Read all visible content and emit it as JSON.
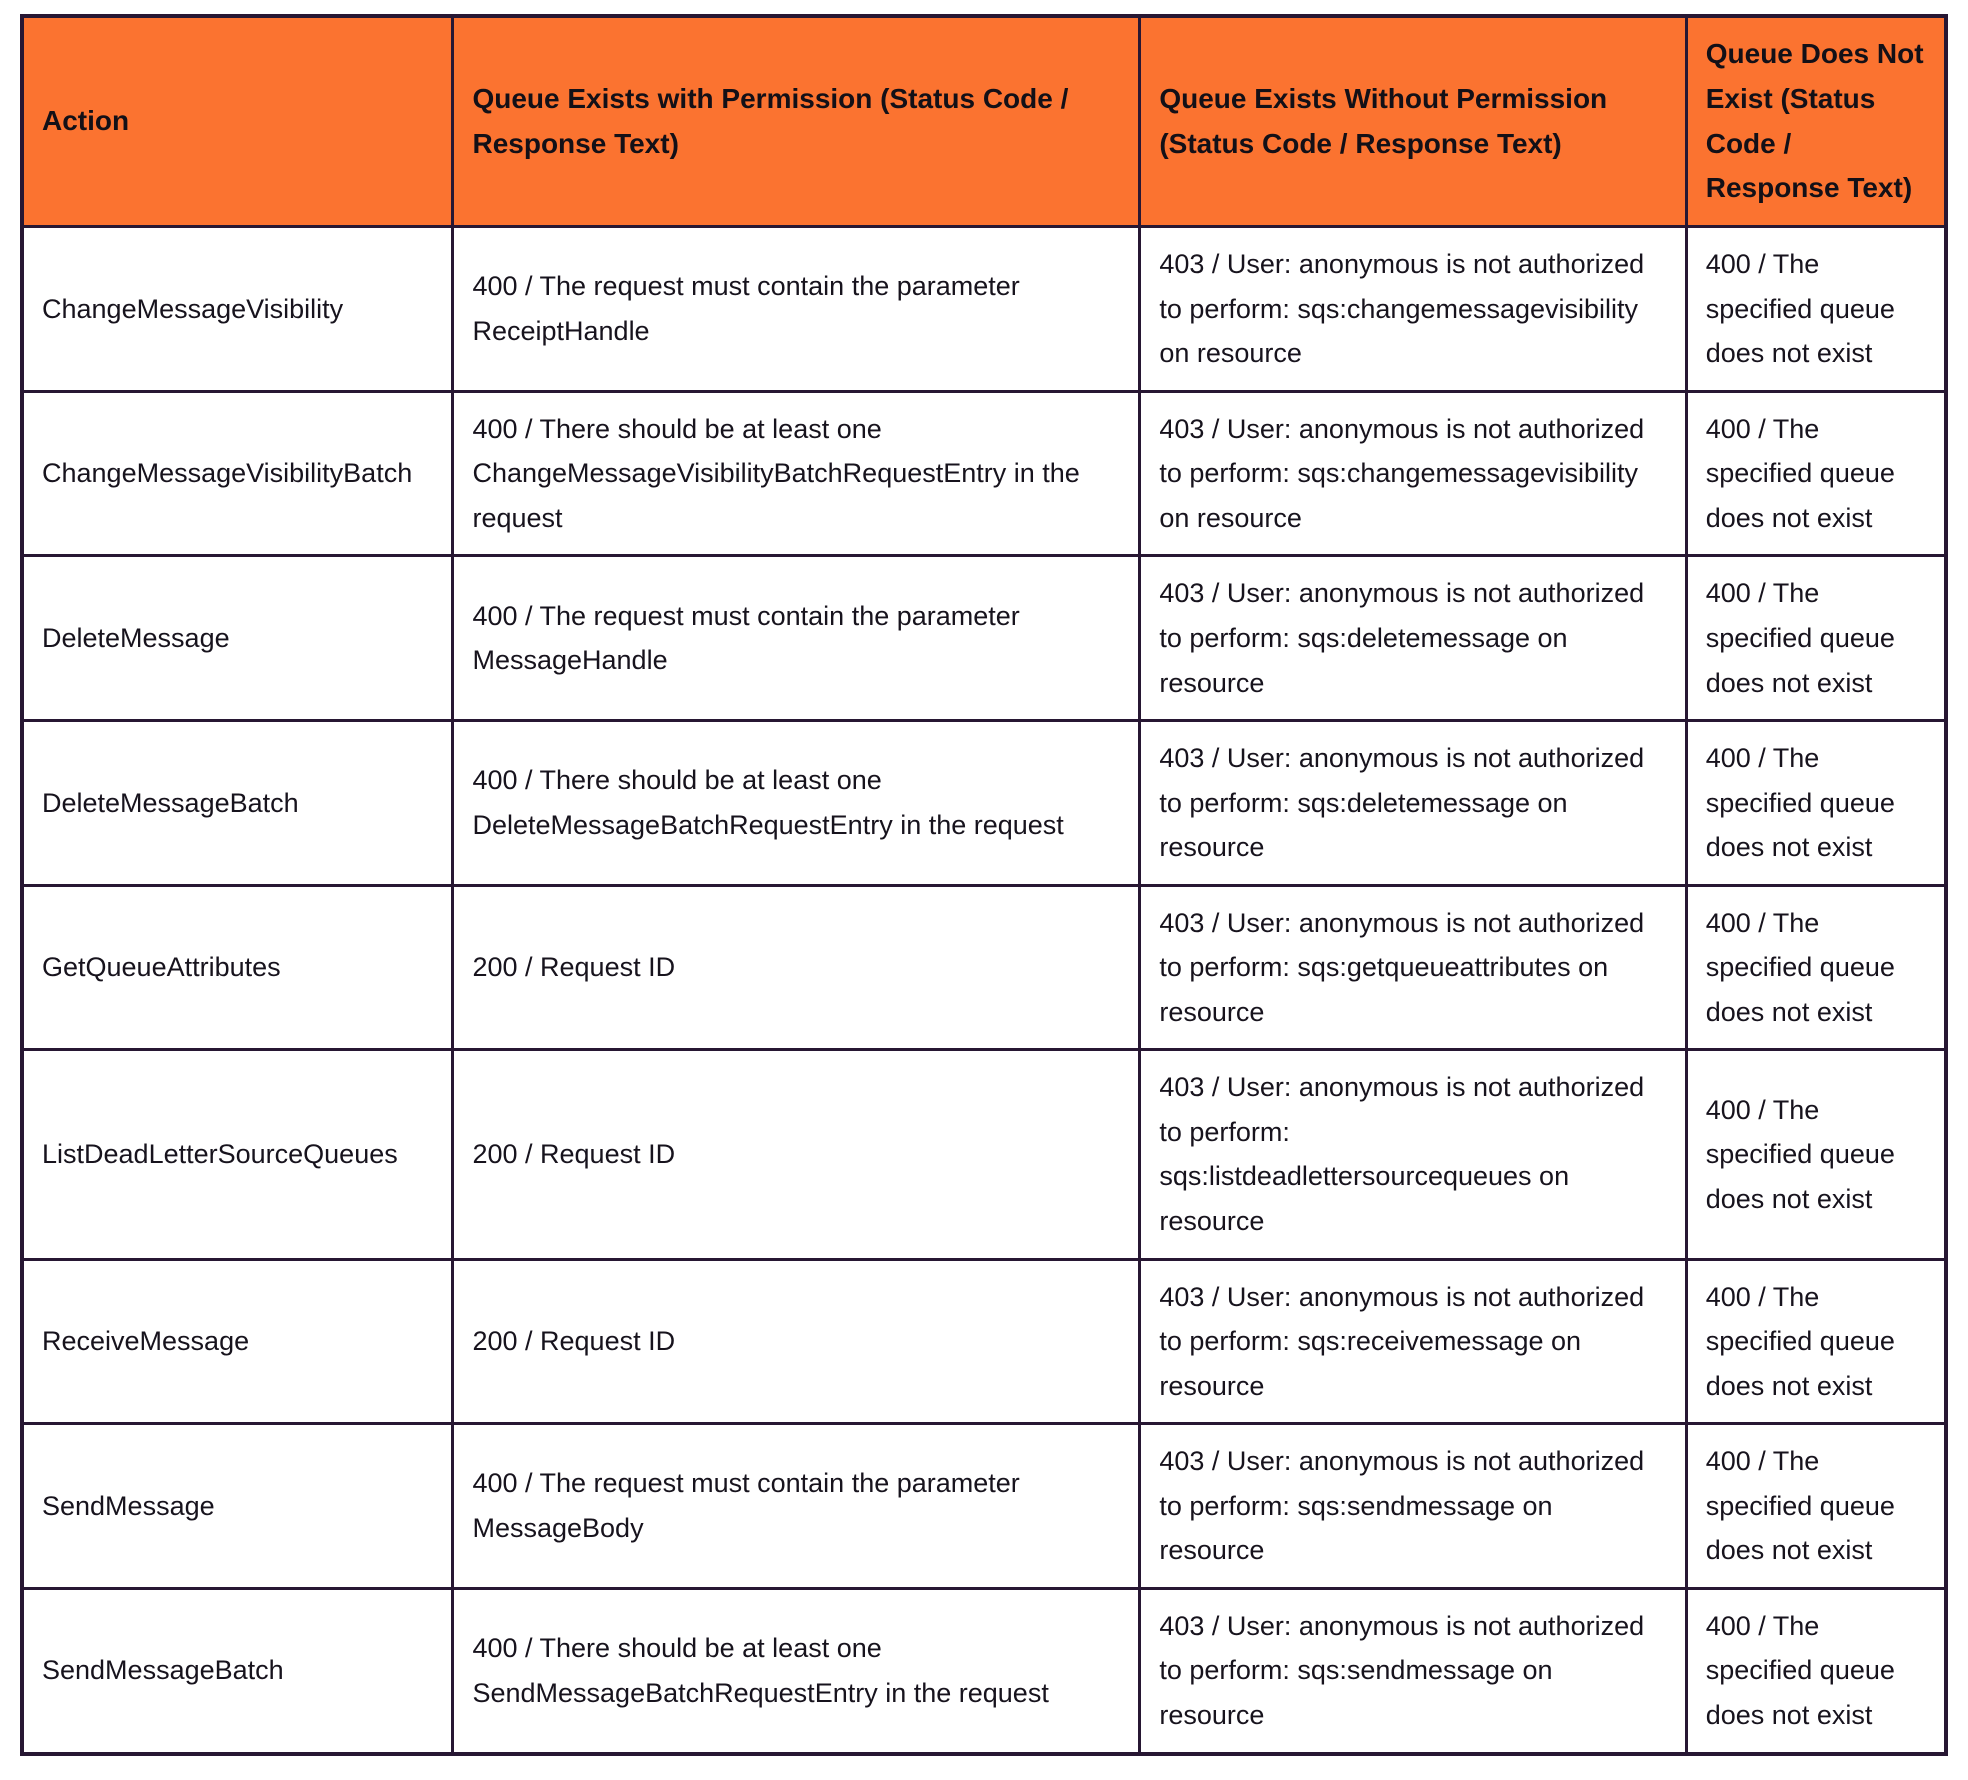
{
  "theme": {
    "accent_color": "#fb7330",
    "border_color": "#271733",
    "text_color": "#17131d",
    "background_color": "#ffffff"
  },
  "table": {
    "header": [
      "Action",
      "Queue Exists with Permission (Status Code / Response Text)",
      "Queue Exists Without Permission (Status Code / Response Text)",
      "Queue Does Not Exist (Status Code / Response Text)"
    ],
    "rows": [
      {
        "action": "ChangeMessageVisibility",
        "with_permission": "400 / The request must contain the parameter ReceiptHandle",
        "without_permission": "403 / User: anonymous is not authorized to perform: sqs:changemessagevisibility on resource",
        "queue_not_exist": "400 / The specified queue does not exist"
      },
      {
        "action": "ChangeMessageVisibilityBatch",
        "with_permission": "400 / There should be at least one ChangeMessageVisibilityBatchRequestEntry in the request",
        "without_permission": "403 / User: anonymous is not authorized to perform: sqs:changemessagevisibility on resource",
        "queue_not_exist": "400 / The specified queue does not exist"
      },
      {
        "action": "DeleteMessage",
        "with_permission": "400 / The request must contain the parameter MessageHandle",
        "without_permission": "403 / User: anonymous is not authorized to perform: sqs:deletemessage on resource",
        "queue_not_exist": "400 / The specified queue does not exist"
      },
      {
        "action": "DeleteMessageBatch",
        "with_permission": "400 / There should be at least one DeleteMessageBatchRequestEntry in the request",
        "without_permission": "403 / User: anonymous is not authorized to perform: sqs:deletemessage on resource",
        "queue_not_exist": "400 / The specified queue does not exist"
      },
      {
        "action": "GetQueueAttributes",
        "with_permission": "200 / Request ID",
        "without_permission": "403 / User: anonymous is not authorized to perform: sqs:getqueueattributes on resource",
        "queue_not_exist": "400 / The specified queue does not exist"
      },
      {
        "action": "ListDeadLetterSourceQueues",
        "with_permission": "200 / Request ID",
        "without_permission": "403 / User: anonymous is not authorized to perform: sqs:listdeadlettersourcequeues on resource",
        "queue_not_exist": "400 / The specified queue does not exist"
      },
      {
        "action": "ReceiveMessage",
        "with_permission": "200 / Request ID",
        "without_permission": "403 / User: anonymous is not authorized to perform: sqs:receivemessage on resource",
        "queue_not_exist": "400 / The specified queue does not exist"
      },
      {
        "action": "SendMessage",
        "with_permission": "400 / The request must contain the parameter MessageBody",
        "without_permission": "403 / User: anonymous is not authorized to perform: sqs:sendmessage on resource",
        "queue_not_exist": "400 / The specified queue does not exist"
      },
      {
        "action": "SendMessageBatch",
        "with_permission": "400 / There should be at least one SendMessageBatchRequestEntry in the request",
        "without_permission": "403 / User: anonymous is not authorized to perform: sqs:sendmessage on resource",
        "queue_not_exist": "400 / The specified queue does not exist"
      }
    ]
  }
}
